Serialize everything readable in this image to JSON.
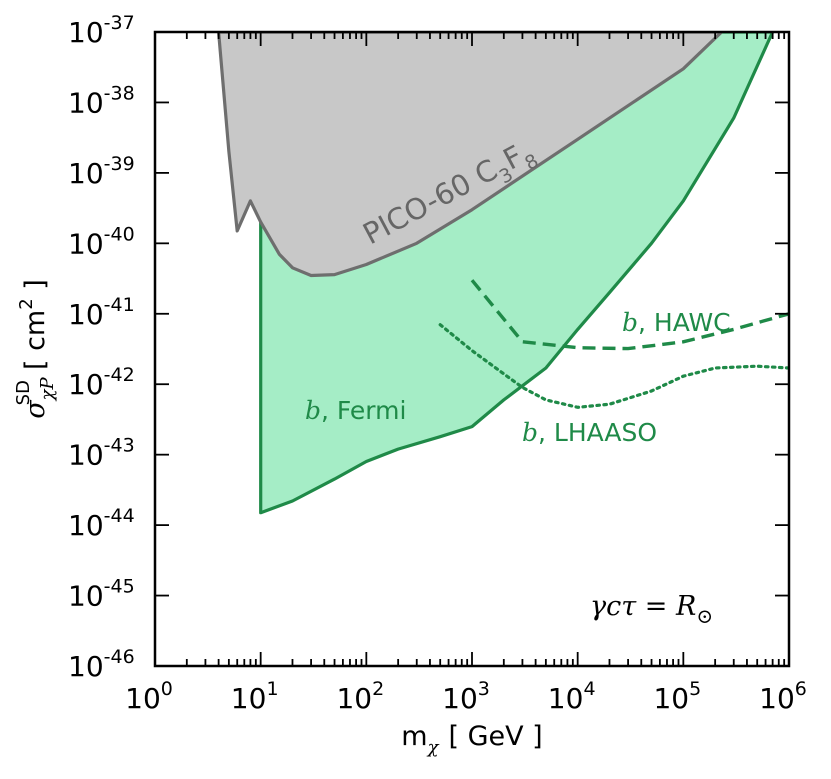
{
  "chart_data": {
    "type": "line",
    "xscale": "log",
    "yscale": "log",
    "xlim": [
      1,
      1000000
    ],
    "ylim": [
      1e-46,
      1e-37
    ],
    "xlabel": {
      "base": "m",
      "sub": "χ",
      "unit": "[ GeV ]"
    },
    "ylabel": {
      "base": "σ",
      "sub": "χP",
      "sup": "SD",
      "unit_open": "[ cm",
      "unit_sup": "2",
      "unit_close": " ]"
    },
    "xticks": [
      {
        "value": 1,
        "base": "10",
        "exp": "0"
      },
      {
        "value": 10,
        "base": "10",
        "exp": "1"
      },
      {
        "value": 100,
        "base": "10",
        "exp": "2"
      },
      {
        "value": 1000,
        "base": "10",
        "exp": "3"
      },
      {
        "value": 10000,
        "base": "10",
        "exp": "4"
      },
      {
        "value": 100000,
        "base": "10",
        "exp": "5"
      },
      {
        "value": 1000000,
        "base": "10",
        "exp": "6"
      }
    ],
    "yticks": [
      {
        "value": 1e-46,
        "base": "10",
        "exp": "-46"
      },
      {
        "value": 1e-45,
        "base": "10",
        "exp": "-45"
      },
      {
        "value": 1e-44,
        "base": "10",
        "exp": "-44"
      },
      {
        "value": 1e-43,
        "base": "10",
        "exp": "-43"
      },
      {
        "value": 1e-42,
        "base": "10",
        "exp": "-42"
      },
      {
        "value": 1e-41,
        "base": "10",
        "exp": "-41"
      },
      {
        "value": 1e-40,
        "base": "10",
        "exp": "-40"
      },
      {
        "value": 1e-39,
        "base": "10",
        "exp": "-39"
      },
      {
        "value": 1e-38,
        "base": "10",
        "exp": "-38"
      },
      {
        "value": 1e-37,
        "base": "10",
        "exp": "-37"
      }
    ],
    "series": [
      {
        "name": "PICO-60 C3F8",
        "style": "solid-fill",
        "fill": "#c8c8c8",
        "stroke": "#6e6e6e",
        "points": [
          [
            4.0,
            1e-37
          ],
          [
            5,
            2e-39
          ],
          [
            6,
            1.5e-40
          ],
          [
            8,
            4e-40
          ],
          [
            10,
            2e-40
          ],
          [
            15,
            7e-41
          ],
          [
            20,
            4.5e-41
          ],
          [
            30,
            3.5e-41
          ],
          [
            50,
            3.6e-41
          ],
          [
            100,
            5e-41
          ],
          [
            300,
            1e-40
          ],
          [
            1000,
            3e-40
          ],
          [
            10000,
            3e-39
          ],
          [
            100000,
            3e-38
          ],
          [
            230000,
            1e-37
          ]
        ]
      },
      {
        "name": "b, Fermi",
        "style": "solid-fill",
        "fill": "#a5edc6",
        "stroke": "#1f8a48",
        "points": [
          [
            10,
            1.5e-44
          ],
          [
            20,
            2.2e-44
          ],
          [
            50,
            4.5e-44
          ],
          [
            100,
            8e-44
          ],
          [
            200,
            1.2e-43
          ],
          [
            500,
            1.8e-43
          ],
          [
            1000,
            2.5e-43
          ],
          [
            2000,
            6e-43
          ],
          [
            5000,
            1.7e-42
          ],
          [
            10000,
            6e-42
          ],
          [
            20000,
            2e-41
          ],
          [
            50000,
            1e-40
          ],
          [
            100000,
            4e-40
          ],
          [
            300000,
            6e-39
          ],
          [
            700000,
            1e-37
          ]
        ]
      },
      {
        "name": "b, HAWC",
        "style": "dashed",
        "stroke": "#1f8a48",
        "points": [
          [
            1000,
            3e-41
          ],
          [
            3000,
            4e-42
          ],
          [
            10000,
            3.3e-42
          ],
          [
            30000,
            3.2e-42
          ],
          [
            100000,
            4e-42
          ],
          [
            300000,
            6e-42
          ],
          [
            1000000,
            1e-41
          ]
        ]
      },
      {
        "name": "b, LHAASO",
        "style": "dotted",
        "stroke": "#1f8a48",
        "points": [
          [
            500,
            7e-42
          ],
          [
            1000,
            3e-42
          ],
          [
            2000,
            1.4e-42
          ],
          [
            3000,
            9e-43
          ],
          [
            5000,
            6e-43
          ],
          [
            10000,
            4.7e-43
          ],
          [
            20000,
            5.2e-43
          ],
          [
            50000,
            8e-43
          ],
          [
            100000,
            1.3e-42
          ],
          [
            200000,
            1.7e-42
          ],
          [
            500000,
            1.8e-42
          ],
          [
            1000000,
            1.7e-42
          ]
        ]
      }
    ],
    "annotations": {
      "pico_label": {
        "main": "PICO-60 C",
        "sub1": "3",
        "mid": "F",
        "sub2": "8",
        "x": 60,
        "y": 2e-40
      },
      "fermi_label": {
        "b": "b",
        "rest": ", Fermi",
        "x": 100,
        "y": 4e-43
      },
      "hawc_label": {
        "b": "b",
        "rest": ", HAWC",
        "x": 20000,
        "y": 8e-42
      },
      "lhaaso_label": {
        "b": "b",
        "rest": ", LHAASO",
        "x": 6000,
        "y": 1.2e-43
      },
      "corner_label": {
        "text": "γcτ = R",
        "sub": "⊙"
      }
    },
    "colors": {
      "green": "#1f8a48",
      "green_fill": "#a5edc6",
      "grey_fill": "#c8c8c8",
      "grey_stroke": "#6e6e6e"
    }
  }
}
